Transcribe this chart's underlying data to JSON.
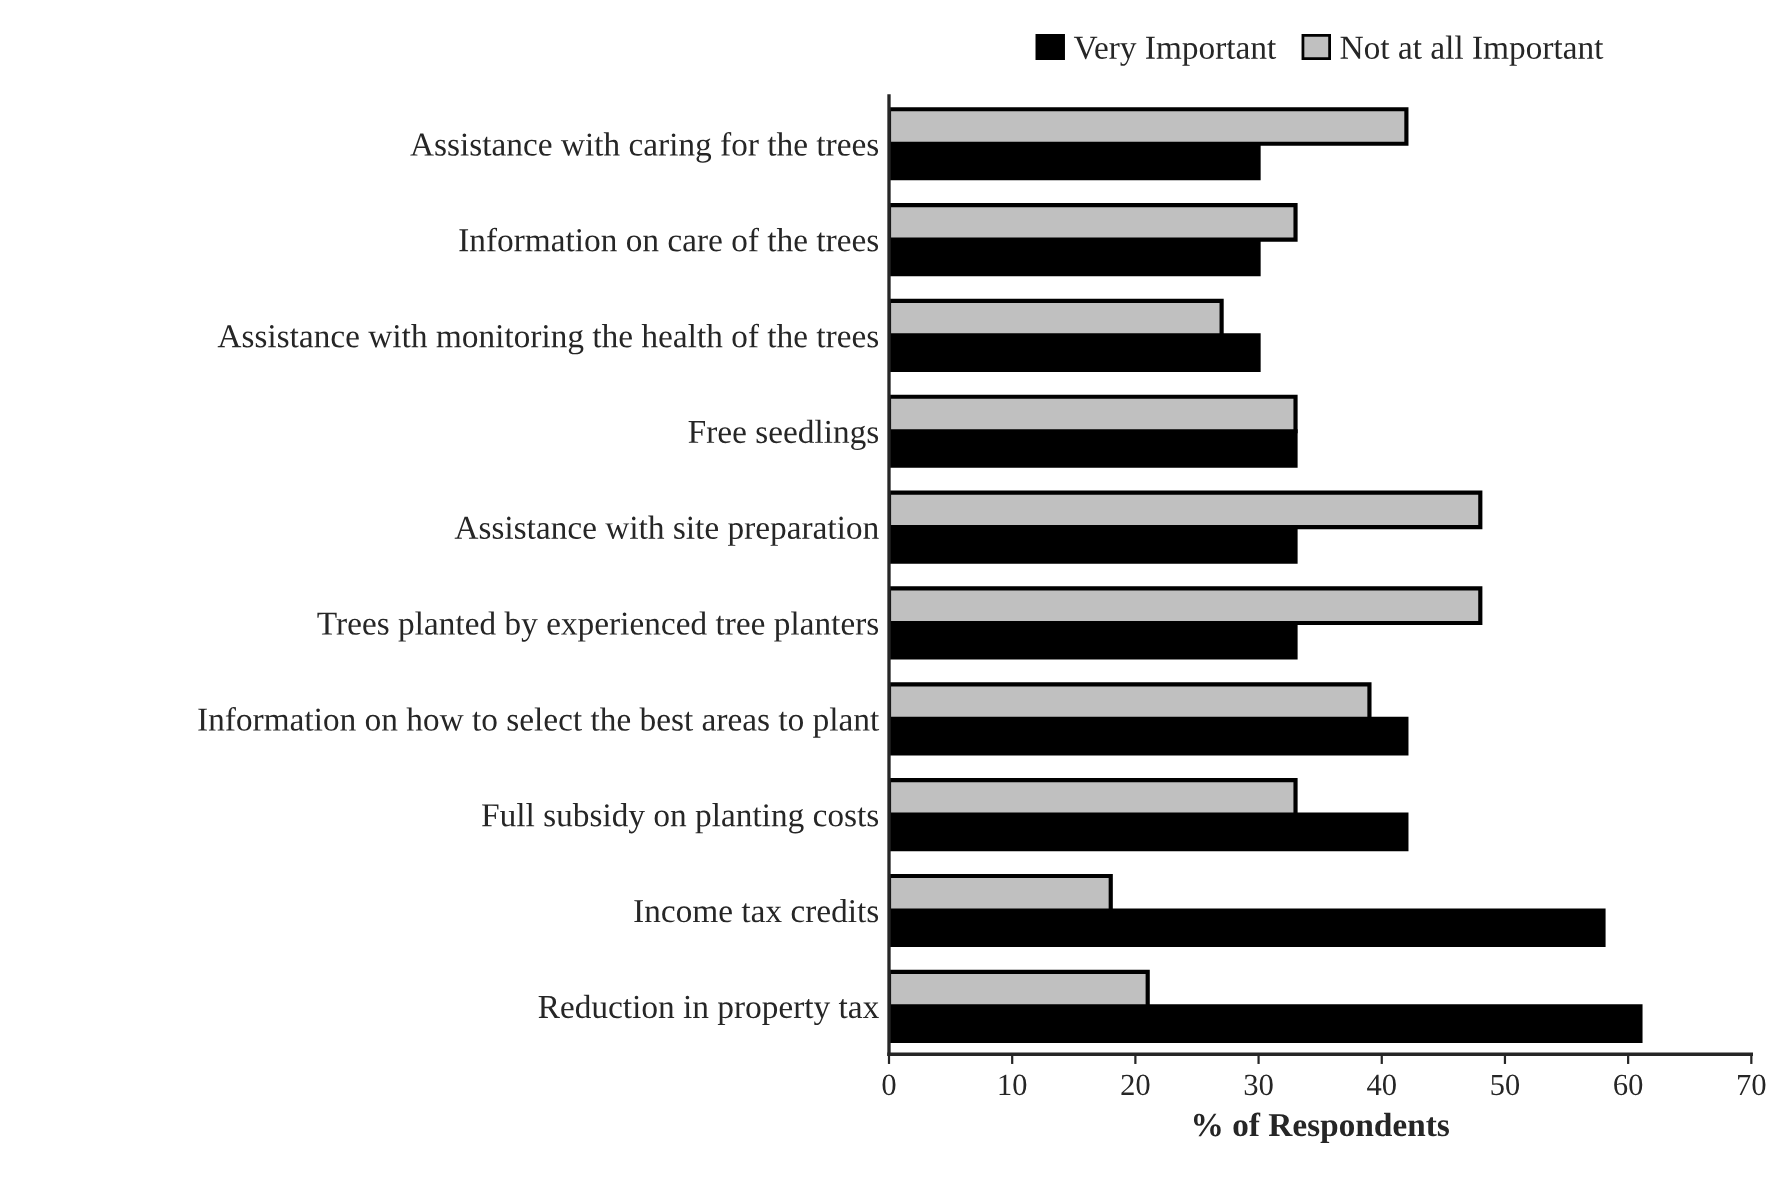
{
  "chart_data": {
    "type": "bar",
    "orientation": "horizontal",
    "xlabel": "% of Respondents",
    "categories": [
      "Assistance with caring for the trees",
      "Information on care of the trees",
      "Assistance with monitoring the health of the trees",
      "Free seedlings",
      "Assistance with site preparation",
      "Trees planted by experienced tree planters",
      "Information on how to select the best areas to plant",
      "Full subsidy on planting costs",
      "Income tax credits",
      "Reduction in property tax"
    ],
    "series": [
      {
        "name": "Not at all Important",
        "color": "#c0c0c0",
        "values": [
          42,
          33,
          27,
          33,
          48,
          48,
          39,
          33,
          18,
          21
        ]
      },
      {
        "name": "Very Important",
        "color": "#000000",
        "values": [
          30,
          30,
          30,
          33,
          33,
          33,
          42,
          42,
          58,
          61
        ]
      }
    ],
    "xlim": [
      0,
      70
    ],
    "xticks": [
      0,
      10,
      20,
      30,
      40,
      50,
      60,
      70
    ],
    "grid": false,
    "legend": "top"
  }
}
